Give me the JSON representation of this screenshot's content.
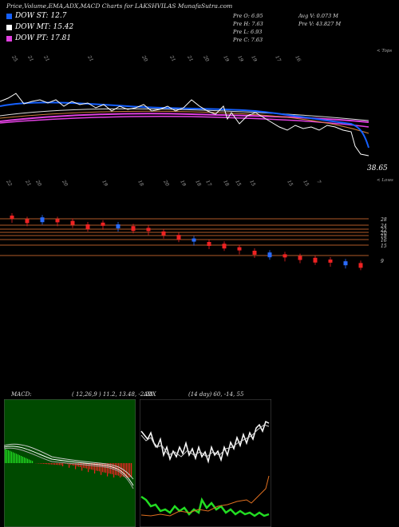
{
  "header": {
    "title": "Price,Volume,EMA,ADX,MACD Charts for LAKSHVILAS MunafaSutra.com"
  },
  "legend": [
    {
      "label": "DOW ST: 12.7",
      "color": "#1560ff"
    },
    {
      "label": "DOW MT: 15.42",
      "color": "#ffffff"
    },
    {
      "label": "DOW PT: 17.81",
      "color": "#e040e0"
    }
  ],
  "stats": {
    "col1": [
      "Pre  O: 6.95",
      "Pre  H: 7.63",
      "Pre  L: 6.93",
      "Pre  C: 7.63"
    ],
    "col2": [
      "Avg V: 0.073 M",
      "Pre  V: 43.827 M"
    ]
  },
  "price_panel": {
    "corner_label": "< Tops",
    "last_value_label": "38.65",
    "top_labels": [
      "25",
      "21",
      "21",
      "21",
      "20",
      "21",
      "21",
      "20",
      "19",
      "19",
      "19",
      "17",
      "16"
    ],
    "bottom_labels": [
      "22",
      "21",
      "20",
      "20",
      "19",
      "18",
      "20",
      "19",
      "18",
      "17",
      "18",
      "15",
      "15",
      "15",
      "15",
      "7"
    ]
  },
  "volume_panel": {
    "corner_label": "< Lows",
    "level_labels": [
      "28",
      "24",
      "22",
      "20",
      "18",
      "16",
      "15",
      "9"
    ]
  },
  "macd_panel": {
    "label": "MACD:",
    "values": "( 12,26,9 ) 11.2, 13.48, -2.28"
  },
  "adx_panel": {
    "label": "ADX",
    "values": "(14 day) 60, -14, 55"
  },
  "colors": {
    "blue": "#1560ff",
    "white": "#ffffff",
    "magenta": "#e040e0",
    "red": "#ee2222",
    "candle_blue": "#2a6cff",
    "green": "#22dd22",
    "orange": "#e07020",
    "level_line": "#b05a28",
    "macd_bg": "#004a00"
  },
  "chart_data": {
    "type": "line",
    "series": [
      {
        "values": [
          35,
          33,
          34,
          33,
          32,
          30,
          31,
          30,
          29,
          28,
          26,
          24,
          22,
          20,
          19,
          17,
          15,
          14,
          13,
          12,
          11,
          10,
          9,
          8
        ]
      }
    ]
  }
}
